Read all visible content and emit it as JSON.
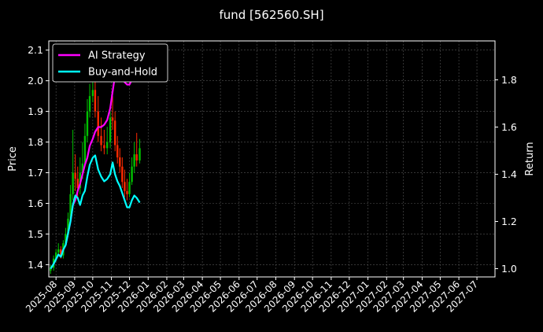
{
  "title": "fund [562560.SH]",
  "chart_data": {
    "type": "line",
    "title": "fund [562560.SH]",
    "xlabel": "",
    "ylabel_left": "Price",
    "ylabel_right": "Return",
    "x_ticks": [
      "2025-08",
      "2025-09",
      "2025-10",
      "2025-11",
      "2025-12",
      "2026-01",
      "2026-02",
      "2026-03",
      "2026-04",
      "2026-05",
      "2026-06",
      "2026-07",
      "2026-08",
      "2026-09",
      "2026-10",
      "2026-11",
      "2026-12",
      "2027-01",
      "2027-02",
      "2027-03",
      "2027-04",
      "2027-05",
      "2027-06",
      "2027-07"
    ],
    "xlim": [
      "2025-07-20",
      "2027-07-31"
    ],
    "y_left_ticks": [
      1.4,
      1.5,
      1.6,
      1.7,
      1.8,
      1.9,
      2.0,
      2.1
    ],
    "y_left_lim": [
      1.36,
      2.13
    ],
    "y_right_ticks": [
      1.0,
      1.2,
      1.4,
      1.6,
      1.8
    ],
    "y_right_lim": [
      0.965,
      1.965
    ],
    "grid": true,
    "legend_position": "top-left",
    "colors": {
      "ai": "#ff00ff",
      "bh": "#00ffff",
      "up": "#00c000",
      "down": "#ff2a00",
      "grid": "#555555"
    },
    "series": [
      {
        "name": "AI Strategy",
        "axis": "right",
        "x": [
          "2025-07-23",
          "2025-07-28",
          "2025-08-01",
          "2025-08-05",
          "2025-08-09",
          "2025-08-13",
          "2025-08-17",
          "2025-08-21",
          "2025-08-25",
          "2025-08-29",
          "2025-09-02",
          "2025-09-06",
          "2025-09-10",
          "2025-09-14",
          "2025-09-18",
          "2025-09-22",
          "2025-09-26",
          "2025-10-01",
          "2025-10-05",
          "2025-10-10",
          "2025-10-15",
          "2025-10-20",
          "2025-10-25",
          "2025-10-30",
          "2025-11-03",
          "2025-11-07",
          "2025-11-11",
          "2025-11-15",
          "2025-11-19",
          "2025-11-23",
          "2025-11-27",
          "2025-12-01",
          "2025-12-05",
          "2025-12-09",
          "2025-12-13",
          "2025-12-18"
        ],
        "values": [
          1.0,
          1.02,
          1.04,
          1.06,
          1.05,
          1.08,
          1.1,
          1.15,
          1.2,
          1.27,
          1.29,
          1.33,
          1.36,
          1.4,
          1.44,
          1.47,
          1.52,
          1.55,
          1.58,
          1.6,
          1.6,
          1.61,
          1.63,
          1.68,
          1.75,
          1.82,
          1.84,
          1.82,
          1.8,
          1.79,
          1.78,
          1.78,
          1.8,
          1.86,
          1.9,
          1.95
        ]
      },
      {
        "name": "Buy-and-Hold",
        "axis": "right",
        "x": [
          "2025-07-23",
          "2025-07-28",
          "2025-08-01",
          "2025-08-05",
          "2025-08-09",
          "2025-08-13",
          "2025-08-17",
          "2025-08-21",
          "2025-08-25",
          "2025-08-29",
          "2025-09-02",
          "2025-09-06",
          "2025-09-10",
          "2025-09-14",
          "2025-09-18",
          "2025-09-22",
          "2025-09-26",
          "2025-10-01",
          "2025-10-05",
          "2025-10-10",
          "2025-10-15",
          "2025-10-20",
          "2025-10-25",
          "2025-10-30",
          "2025-11-03",
          "2025-11-07",
          "2025-11-11",
          "2025-11-15",
          "2025-11-19",
          "2025-11-23",
          "2025-11-27",
          "2025-12-01",
          "2025-12-05",
          "2025-12-09",
          "2025-12-13",
          "2025-12-18"
        ],
        "values": [
          1.0,
          1.02,
          1.04,
          1.06,
          1.05,
          1.08,
          1.1,
          1.15,
          1.2,
          1.27,
          1.31,
          1.3,
          1.27,
          1.31,
          1.33,
          1.39,
          1.44,
          1.47,
          1.48,
          1.42,
          1.39,
          1.37,
          1.38,
          1.4,
          1.45,
          1.4,
          1.37,
          1.35,
          1.32,
          1.29,
          1.26,
          1.26,
          1.29,
          1.31,
          1.3,
          1.28
        ]
      },
      {
        "name": "",
        "type": "candlestick",
        "axis": "left",
        "x": [
          "2025-07-23",
          "2025-07-28",
          "2025-08-01",
          "2025-08-05",
          "2025-08-09",
          "2025-08-13",
          "2025-08-17",
          "2025-08-21",
          "2025-08-25",
          "2025-08-29",
          "2025-09-02",
          "2025-09-06",
          "2025-09-10",
          "2025-09-14",
          "2025-09-18",
          "2025-09-22",
          "2025-09-26",
          "2025-10-01",
          "2025-10-05",
          "2025-10-10",
          "2025-10-15",
          "2025-10-20",
          "2025-10-25",
          "2025-10-30",
          "2025-11-03",
          "2025-11-07",
          "2025-11-11",
          "2025-11-15",
          "2025-11-19",
          "2025-11-23",
          "2025-11-27",
          "2025-12-01",
          "2025-12-05",
          "2025-12-09",
          "2025-12-13",
          "2025-12-18"
        ],
        "open": [
          1.38,
          1.39,
          1.42,
          1.44,
          1.45,
          1.43,
          1.47,
          1.5,
          1.55,
          1.63,
          1.7,
          1.68,
          1.65,
          1.7,
          1.73,
          1.82,
          1.9,
          1.95,
          1.97,
          1.9,
          1.82,
          1.79,
          1.78,
          1.8,
          1.88,
          1.87,
          1.79,
          1.75,
          1.72,
          1.67,
          1.64,
          1.63,
          1.67,
          1.72,
          1.76,
          1.74
        ],
        "close": [
          1.39,
          1.42,
          1.44,
          1.45,
          1.43,
          1.47,
          1.5,
          1.55,
          1.63,
          1.7,
          1.68,
          1.65,
          1.7,
          1.73,
          1.82,
          1.9,
          1.95,
          1.97,
          1.9,
          1.82,
          1.79,
          1.78,
          1.8,
          1.88,
          1.87,
          1.79,
          1.75,
          1.72,
          1.67,
          1.64,
          1.63,
          1.67,
          1.72,
          1.76,
          1.74,
          1.78
        ],
        "high": [
          1.4,
          1.43,
          1.45,
          1.47,
          1.46,
          1.48,
          1.52,
          1.57,
          1.66,
          1.84,
          1.76,
          1.72,
          1.75,
          1.8,
          1.86,
          1.94,
          1.99,
          2.02,
          2.0,
          1.95,
          1.88,
          1.84,
          1.85,
          1.92,
          1.95,
          1.9,
          1.82,
          1.78,
          1.75,
          1.71,
          1.68,
          1.7,
          1.75,
          1.8,
          1.83,
          1.81
        ],
        "low": [
          1.37,
          1.38,
          1.41,
          1.43,
          1.42,
          1.42,
          1.46,
          1.49,
          1.54,
          1.61,
          1.64,
          1.62,
          1.63,
          1.68,
          1.72,
          1.8,
          1.88,
          1.93,
          1.88,
          1.8,
          1.77,
          1.76,
          1.76,
          1.78,
          1.84,
          1.77,
          1.73,
          1.7,
          1.65,
          1.62,
          1.61,
          1.62,
          1.66,
          1.7,
          1.72,
          1.73
        ]
      }
    ]
  }
}
